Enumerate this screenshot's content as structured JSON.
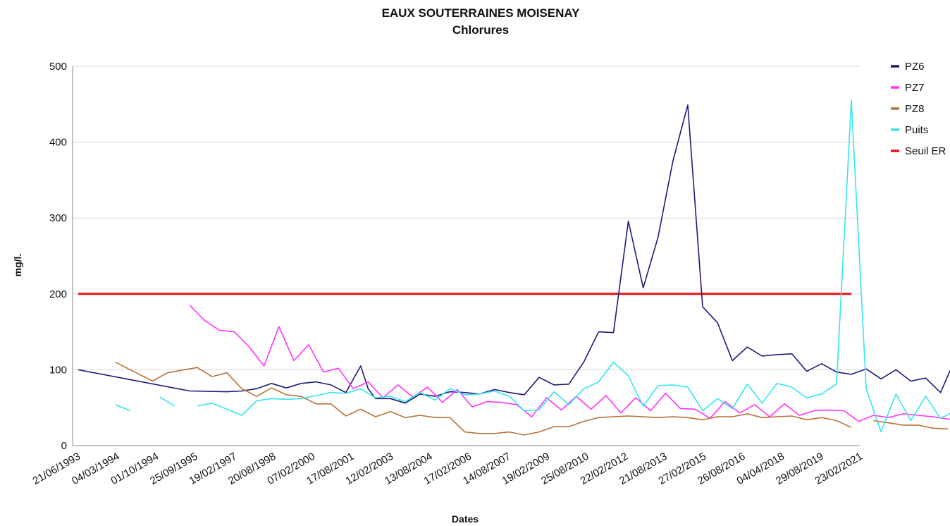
{
  "chart_data": {
    "type": "line",
    "title": "EAUX SOUTERRAINES MOISENAY",
    "subtitle": "Chlorures",
    "xlabel": "Dates",
    "ylabel": "mg/l.",
    "ylim": [
      0,
      500
    ],
    "yticks": [
      "0",
      "100",
      "200",
      "300",
      "400",
      "500"
    ],
    "grid": "horizontal",
    "legend_position": "right",
    "x_labels": [
      "21/06/1993",
      "04/03/1994",
      "01/10/1994",
      "25/09/1995",
      "19/02/1997",
      "20/08/1998",
      "07/02/2000",
      "17/08/2001",
      "12/02/2003",
      "13/08/2004",
      "17/02/2006",
      "14/08/2007",
      "19/02/2009",
      "25/08/2010",
      "22/02/2012",
      "21/08/2013",
      "27/02/2015",
      "26/08/2016",
      "04/04/2018",
      "29/08/2019",
      "23/02/2021"
    ],
    "x_count": 105,
    "colors": {
      "PZ6": "#1b1b7a",
      "PZ7": "#ff33ff",
      "PZ8": "#b8733a",
      "Puits": "#33e6f0",
      "Seuil ER": "#ee1111"
    },
    "series": [
      {
        "name": "PZ6",
        "points": [
          [
            0,
            100
          ],
          [
            15,
            72
          ],
          [
            20,
            71
          ],
          [
            22,
            72
          ],
          [
            24,
            75
          ],
          [
            26,
            82
          ],
          [
            28,
            76
          ],
          [
            30,
            82
          ],
          [
            32,
            84
          ],
          [
            34,
            80
          ],
          [
            36,
            70
          ],
          [
            38,
            105
          ],
          [
            39,
            75
          ],
          [
            40,
            62
          ],
          [
            42,
            62
          ],
          [
            44,
            56
          ],
          [
            46,
            68
          ],
          [
            48,
            65
          ],
          [
            50,
            71
          ],
          [
            52,
            70
          ],
          [
            54,
            68
          ],
          [
            56,
            74
          ],
          [
            58,
            70
          ],
          [
            60,
            67
          ],
          [
            62,
            90
          ],
          [
            64,
            80
          ],
          [
            66,
            81
          ],
          [
            68,
            110
          ],
          [
            70,
            150
          ],
          [
            72,
            149
          ],
          [
            74,
            296
          ],
          [
            76,
            208
          ],
          [
            78,
            275
          ],
          [
            80,
            375
          ],
          [
            82,
            449
          ],
          [
            84,
            183
          ],
          [
            86,
            162
          ],
          [
            88,
            112
          ],
          [
            90,
            130
          ],
          [
            92,
            118
          ],
          [
            94,
            120
          ],
          [
            96,
            121
          ],
          [
            98,
            98
          ],
          [
            100,
            108
          ],
          [
            102,
            97
          ],
          [
            104,
            94
          ],
          [
            106,
            101
          ],
          [
            108,
            88
          ],
          [
            110,
            100
          ],
          [
            112,
            85
          ],
          [
            114,
            89
          ],
          [
            116,
            70
          ],
          [
            118,
            115
          ]
        ]
      },
      {
        "name": "PZ7",
        "points": [
          [
            15,
            185
          ],
          [
            17,
            165
          ],
          [
            19,
            152
          ],
          [
            21,
            150
          ],
          [
            23,
            130
          ],
          [
            25,
            105
          ],
          [
            27,
            157
          ],
          [
            29,
            112
          ],
          [
            31,
            133
          ],
          [
            33,
            97
          ],
          [
            35,
            102
          ],
          [
            37,
            75
          ],
          [
            39,
            84
          ],
          [
            41,
            63
          ],
          [
            43,
            80
          ],
          [
            45,
            64
          ],
          [
            47,
            77
          ],
          [
            49,
            57
          ],
          [
            51,
            74
          ],
          [
            53,
            51
          ],
          [
            55,
            58
          ],
          [
            57,
            57
          ],
          [
            59,
            54
          ],
          [
            61,
            38
          ],
          [
            63,
            63
          ],
          [
            65,
            47
          ],
          [
            67,
            65
          ],
          [
            69,
            48
          ],
          [
            71,
            66
          ],
          [
            73,
            43
          ],
          [
            75,
            63
          ],
          [
            77,
            46
          ],
          [
            79,
            69
          ],
          [
            81,
            49
          ],
          [
            83,
            48
          ],
          [
            85,
            36
          ],
          [
            87,
            58
          ],
          [
            89,
            43
          ],
          [
            91,
            54
          ],
          [
            93,
            38
          ],
          [
            95,
            55
          ],
          [
            97,
            40
          ],
          [
            99,
            46
          ],
          [
            101,
            47
          ],
          [
            103,
            46
          ],
          [
            105,
            32
          ],
          [
            107,
            40
          ],
          [
            109,
            37
          ],
          [
            111,
            42
          ],
          [
            113,
            40
          ],
          [
            115,
            38
          ],
          [
            117,
            35
          ],
          [
            119,
            34
          ]
        ]
      },
      {
        "name": "PZ8",
        "points": [
          [
            5,
            110
          ],
          [
            7,
            100
          ],
          [
            10,
            85
          ],
          [
            12,
            96
          ],
          [
            16,
            103
          ],
          [
            18,
            91
          ],
          [
            20,
            96
          ],
          [
            22,
            75
          ],
          [
            24,
            65
          ],
          [
            26,
            76
          ],
          [
            28,
            67
          ],
          [
            30,
            65
          ],
          [
            32,
            55
          ],
          [
            34,
            55
          ],
          [
            36,
            39
          ],
          [
            38,
            48
          ],
          [
            40,
            38
          ],
          [
            42,
            45
          ],
          [
            44,
            37
          ],
          [
            46,
            40
          ],
          [
            48,
            37
          ],
          [
            50,
            37
          ],
          [
            52,
            18
          ],
          [
            54,
            16
          ],
          [
            56,
            16
          ],
          [
            58,
            18
          ],
          [
            60,
            14
          ],
          [
            62,
            18
          ],
          [
            64,
            25
          ],
          [
            66,
            25
          ],
          [
            68,
            32
          ],
          [
            70,
            37
          ],
          [
            72,
            38
          ],
          [
            74,
            39
          ],
          [
            76,
            38
          ],
          [
            78,
            37
          ],
          [
            80,
            38
          ],
          [
            82,
            37
          ],
          [
            84,
            34
          ],
          [
            86,
            38
          ],
          [
            88,
            38
          ],
          [
            90,
            42
          ],
          [
            92,
            37
          ],
          [
            94,
            38
          ],
          [
            96,
            39
          ],
          [
            98,
            34
          ],
          [
            100,
            37
          ],
          [
            102,
            33
          ],
          [
            104,
            24
          ],
          [
            null,
            null
          ],
          [
            107,
            33
          ],
          [
            109,
            30
          ],
          [
            111,
            27
          ],
          [
            113,
            27
          ],
          [
            115,
            23
          ],
          [
            117,
            22
          ]
        ]
      },
      {
        "name": "Puits",
        "points": [
          [
            0,
            40
          ],
          [
            null,
            null
          ],
          [
            5,
            54
          ],
          [
            7,
            46
          ],
          [
            null,
            null
          ],
          [
            11,
            64
          ],
          [
            13,
            52
          ],
          [
            null,
            null
          ],
          [
            16,
            52
          ],
          [
            18,
            56
          ],
          [
            20,
            48
          ],
          [
            22,
            40
          ],
          [
            24,
            59
          ],
          [
            26,
            62
          ],
          [
            28,
            61
          ],
          [
            30,
            62
          ],
          [
            32,
            66
          ],
          [
            34,
            70
          ],
          [
            36,
            69
          ],
          [
            38,
            75
          ],
          [
            40,
            63
          ],
          [
            42,
            65
          ],
          [
            44,
            58
          ],
          [
            46,
            70
          ],
          [
            48,
            60
          ],
          [
            50,
            75
          ],
          [
            52,
            67
          ],
          [
            54,
            68
          ],
          [
            56,
            72
          ],
          [
            58,
            65
          ],
          [
            60,
            46
          ],
          [
            62,
            47
          ],
          [
            64,
            71
          ],
          [
            66,
            54
          ],
          [
            68,
            75
          ],
          [
            70,
            84
          ],
          [
            72,
            110
          ],
          [
            74,
            92
          ],
          [
            76,
            52
          ],
          [
            78,
            79
          ],
          [
            80,
            80
          ],
          [
            82,
            77
          ],
          [
            84,
            46
          ],
          [
            86,
            62
          ],
          [
            88,
            49
          ],
          [
            90,
            81
          ],
          [
            92,
            56
          ],
          [
            94,
            82
          ],
          [
            96,
            77
          ],
          [
            98,
            63
          ],
          [
            100,
            68
          ],
          [
            102,
            81
          ],
          [
            104,
            455
          ],
          [
            106,
            75
          ],
          [
            108,
            18
          ],
          [
            110,
            68
          ],
          [
            112,
            33
          ],
          [
            114,
            65
          ],
          [
            116,
            36
          ],
          [
            118,
            46
          ]
        ]
      }
    ],
    "threshold": {
      "name": "Seuil ER",
      "value": 200
    }
  }
}
